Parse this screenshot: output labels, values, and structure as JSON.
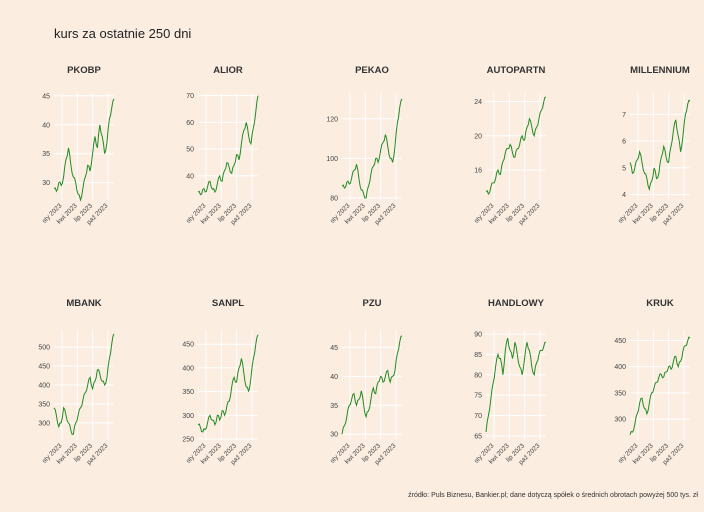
{
  "title": "kurs za ostatnie 250 dni",
  "footer": "źródło: Puls Biznesu, Bankier.pl; dane dotyczą spółek o średnich obrotach powyżej 500 tys. zł",
  "line_color": "#228b22",
  "background_color": "#fbeee1",
  "chart_data": [
    {
      "type": "line",
      "title": "PKOBP",
      "ylim": [
        27,
        45.5
      ],
      "yticks": [
        30,
        35,
        40,
        45
      ],
      "x_ticks": [
        "sty 2023",
        "kwi 2023",
        "lip 2023",
        "paź 2023"
      ],
      "x": [
        0,
        10,
        20,
        30,
        40,
        50,
        60,
        70,
        80,
        90,
        100,
        110,
        120,
        130,
        140,
        150,
        160,
        170,
        180,
        190,
        200,
        210,
        220,
        230,
        240,
        249
      ],
      "y": [
        29,
        28.5,
        30,
        29.5,
        31,
        34,
        36,
        33,
        31,
        30,
        28,
        27,
        29,
        31,
        33,
        32,
        35,
        38,
        36,
        40,
        38,
        35,
        37,
        41,
        43,
        44.5
      ]
    },
    {
      "type": "line",
      "title": "ALIOR",
      "ylim": [
        31,
        71
      ],
      "yticks": [
        40,
        50,
        60,
        70
      ],
      "x_ticks": [
        "sty 2023",
        "kwi 2023",
        "lip 2023",
        "paź 2023"
      ],
      "x": [
        0,
        10,
        20,
        30,
        40,
        50,
        60,
        70,
        80,
        90,
        100,
        110,
        120,
        130,
        140,
        150,
        160,
        170,
        180,
        190,
        200,
        210,
        220,
        230,
        240,
        249
      ],
      "y": [
        34,
        33,
        35,
        34,
        36,
        38,
        35,
        34,
        37,
        40,
        38,
        42,
        45,
        43,
        41,
        44,
        48,
        46,
        52,
        57,
        60,
        55,
        52,
        58,
        64,
        70
      ]
    },
    {
      "type": "line",
      "title": "PEKAO",
      "ylim": [
        79,
        133
      ],
      "yticks": [
        80,
        100,
        120
      ],
      "x_ticks": [
        "sty 2023",
        "kwi 2023",
        "lip 2023",
        "paź 2023"
      ],
      "x": [
        0,
        10,
        20,
        30,
        40,
        50,
        60,
        70,
        80,
        90,
        100,
        110,
        120,
        130,
        140,
        150,
        160,
        170,
        180,
        190,
        200,
        210,
        220,
        230,
        240,
        249
      ],
      "y": [
        86,
        85,
        88,
        87,
        90,
        94,
        97,
        90,
        84,
        82,
        80,
        86,
        92,
        96,
        100,
        98,
        104,
        108,
        112,
        106,
        100,
        98,
        106,
        118,
        126,
        130
      ]
    },
    {
      "type": "line",
      "title": "AUTOPARTN",
      "ylim": [
        12.5,
        25
      ],
      "yticks": [
        16,
        20,
        24
      ],
      "x_ticks": [
        "sty 2023",
        "kwi 2023",
        "lip 2023",
        "paź 2023"
      ],
      "x": [
        0,
        10,
        20,
        30,
        40,
        50,
        60,
        70,
        80,
        90,
        100,
        110,
        120,
        130,
        140,
        150,
        160,
        170,
        180,
        190,
        200,
        210,
        220,
        230,
        240,
        249
      ],
      "y": [
        13.5,
        13.2,
        14,
        14.5,
        15,
        16,
        15.5,
        17,
        18,
        18.5,
        19,
        18,
        17.5,
        18.5,
        19,
        20,
        19.5,
        21,
        22,
        21,
        20,
        21,
        22,
        23,
        24,
        24.5
      ]
    },
    {
      "type": "line",
      "title": "MILLENNIUM",
      "ylim": [
        3.8,
        7.8
      ],
      "yticks": [
        4,
        5,
        6,
        7
      ],
      "x_ticks": [
        "sty 2023",
        "kwi 2023",
        "lip 2023",
        "paź 2023"
      ],
      "x": [
        0,
        10,
        20,
        30,
        40,
        50,
        60,
        70,
        80,
        90,
        100,
        110,
        120,
        130,
        140,
        150,
        160,
        170,
        180,
        190,
        200,
        210,
        220,
        230,
        240,
        249
      ],
      "y": [
        5.2,
        4.8,
        5,
        5.3,
        5.6,
        5.2,
        4.8,
        4.6,
        4.2,
        4.5,
        5,
        4.6,
        4.8,
        5.4,
        5.8,
        5.4,
        5.2,
        5.8,
        6.4,
        6.8,
        6.2,
        5.6,
        6.2,
        7,
        7.4,
        7.5
      ]
    },
    {
      "type": "line",
      "title": "MBANK",
      "ylim": [
        255,
        545
      ],
      "yticks": [
        300,
        350,
        400,
        450,
        500
      ],
      "x_ticks": [
        "sty 2023",
        "kwi 2023",
        "lip 2023",
        "paź 2023"
      ],
      "x": [
        0,
        10,
        20,
        30,
        40,
        50,
        60,
        70,
        80,
        90,
        100,
        110,
        120,
        130,
        140,
        150,
        160,
        170,
        180,
        190,
        200,
        210,
        220,
        230,
        240,
        249
      ],
      "y": [
        340,
        320,
        290,
        300,
        340,
        320,
        300,
        280,
        270,
        300,
        320,
        340,
        360,
        380,
        400,
        420,
        390,
        410,
        440,
        430,
        410,
        400,
        420,
        470,
        510,
        535
      ]
    },
    {
      "type": "line",
      "title": "SANPL",
      "ylim": [
        248,
        480
      ],
      "yticks": [
        250,
        300,
        350,
        400,
        450
      ],
      "x_ticks": [
        "sty 2023",
        "kwi 2023",
        "lip 2023",
        "paź 2023"
      ],
      "x": [
        0,
        10,
        20,
        30,
        40,
        50,
        60,
        70,
        80,
        90,
        100,
        110,
        120,
        130,
        140,
        150,
        160,
        170,
        180,
        190,
        200,
        210,
        220,
        230,
        240,
        249
      ],
      "y": [
        280,
        275,
        265,
        270,
        285,
        300,
        290,
        280,
        300,
        290,
        310,
        300,
        320,
        330,
        360,
        380,
        370,
        400,
        420,
        390,
        360,
        350,
        380,
        420,
        450,
        470
      ]
    },
    {
      "type": "line",
      "title": "PZU",
      "ylim": [
        29,
        48
      ],
      "yticks": [
        30,
        35,
        40,
        45
      ],
      "x_ticks": [
        "sty 2023",
        "kwi 2023",
        "lip 2023",
        "paź 2023"
      ],
      "x": [
        0,
        10,
        20,
        30,
        40,
        50,
        60,
        70,
        80,
        90,
        100,
        110,
        120,
        130,
        140,
        150,
        160,
        170,
        180,
        190,
        200,
        210,
        220,
        230,
        240,
        249
      ],
      "y": [
        30,
        31.5,
        33,
        35,
        36,
        37,
        35,
        36,
        37.5,
        35,
        33,
        34,
        36,
        38,
        37,
        39,
        40,
        39,
        40,
        41,
        39,
        40,
        41,
        44,
        46,
        47
      ]
    },
    {
      "type": "line",
      "title": "HANDLOWY",
      "ylim": [
        64,
        91
      ],
      "yticks": [
        65,
        70,
        75,
        80,
        85,
        90
      ],
      "x_ticks": [
        "sty 2023",
        "kwi 2023",
        "lip 2023",
        "paź 2023"
      ],
      "x": [
        0,
        10,
        20,
        30,
        40,
        50,
        60,
        70,
        80,
        90,
        100,
        110,
        120,
        130,
        140,
        150,
        160,
        170,
        180,
        190,
        200,
        210,
        220,
        230,
        240,
        249
      ],
      "y": [
        66,
        70,
        74,
        78,
        82,
        85,
        84,
        80,
        86,
        89,
        86,
        84,
        88,
        85,
        82,
        80,
        84,
        88,
        86,
        82,
        80,
        83,
        85,
        86,
        87,
        88
      ]
    },
    {
      "type": "line",
      "title": "KRUK",
      "ylim": [
        260,
        470
      ],
      "yticks": [
        300,
        350,
        400,
        450
      ],
      "x_ticks": [
        "sty 2023",
        "kwi 2023",
        "lip 2023",
        "paź 2023"
      ],
      "x": [
        0,
        10,
        20,
        30,
        40,
        50,
        60,
        70,
        80,
        90,
        100,
        110,
        120,
        130,
        140,
        150,
        160,
        170,
        180,
        190,
        200,
        210,
        220,
        230,
        240,
        249
      ],
      "y": [
        270,
        275,
        290,
        310,
        330,
        340,
        320,
        310,
        330,
        350,
        360,
        370,
        380,
        385,
        380,
        390,
        400,
        395,
        410,
        420,
        400,
        410,
        430,
        440,
        450,
        455
      ]
    }
  ]
}
